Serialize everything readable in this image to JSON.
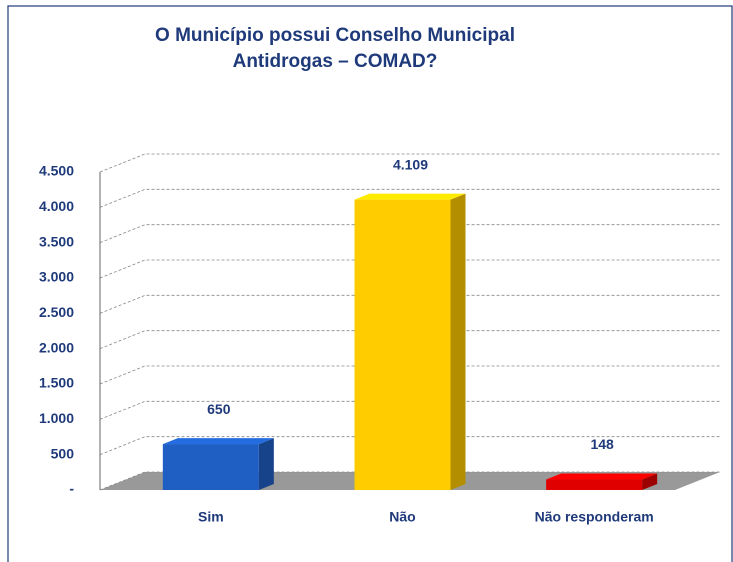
{
  "chart_data": {
    "type": "bar3d",
    "title": [
      "O Município possui Conselho Municipal",
      "Antidrogas – COMAD?"
    ],
    "categories": [
      "Sim",
      "Não",
      "Não responderam"
    ],
    "values": [
      650,
      4109,
      148
    ],
    "value_labels": [
      "650",
      "4.109",
      "148"
    ],
    "colors": [
      "#1f5fc4",
      "#ffcc00",
      "#e00000"
    ],
    "ylim": [
      0,
      4500
    ],
    "yticks": [
      {
        "value": 0,
        "label": "-"
      },
      500,
      {
        "value": 1000,
        "label": "1.000"
      },
      {
        "value": 1500,
        "label": "1.500"
      },
      {
        "value": 2000,
        "label": "2.000"
      },
      {
        "value": 2500,
        "label": "2.500"
      },
      {
        "value": 3000,
        "label": "3.000"
      },
      {
        "value": 3500,
        "label": "3.500"
      },
      {
        "value": 4000,
        "label": "4.000"
      },
      {
        "value": 4500,
        "label": "4.500"
      }
    ],
    "grid": true
  }
}
